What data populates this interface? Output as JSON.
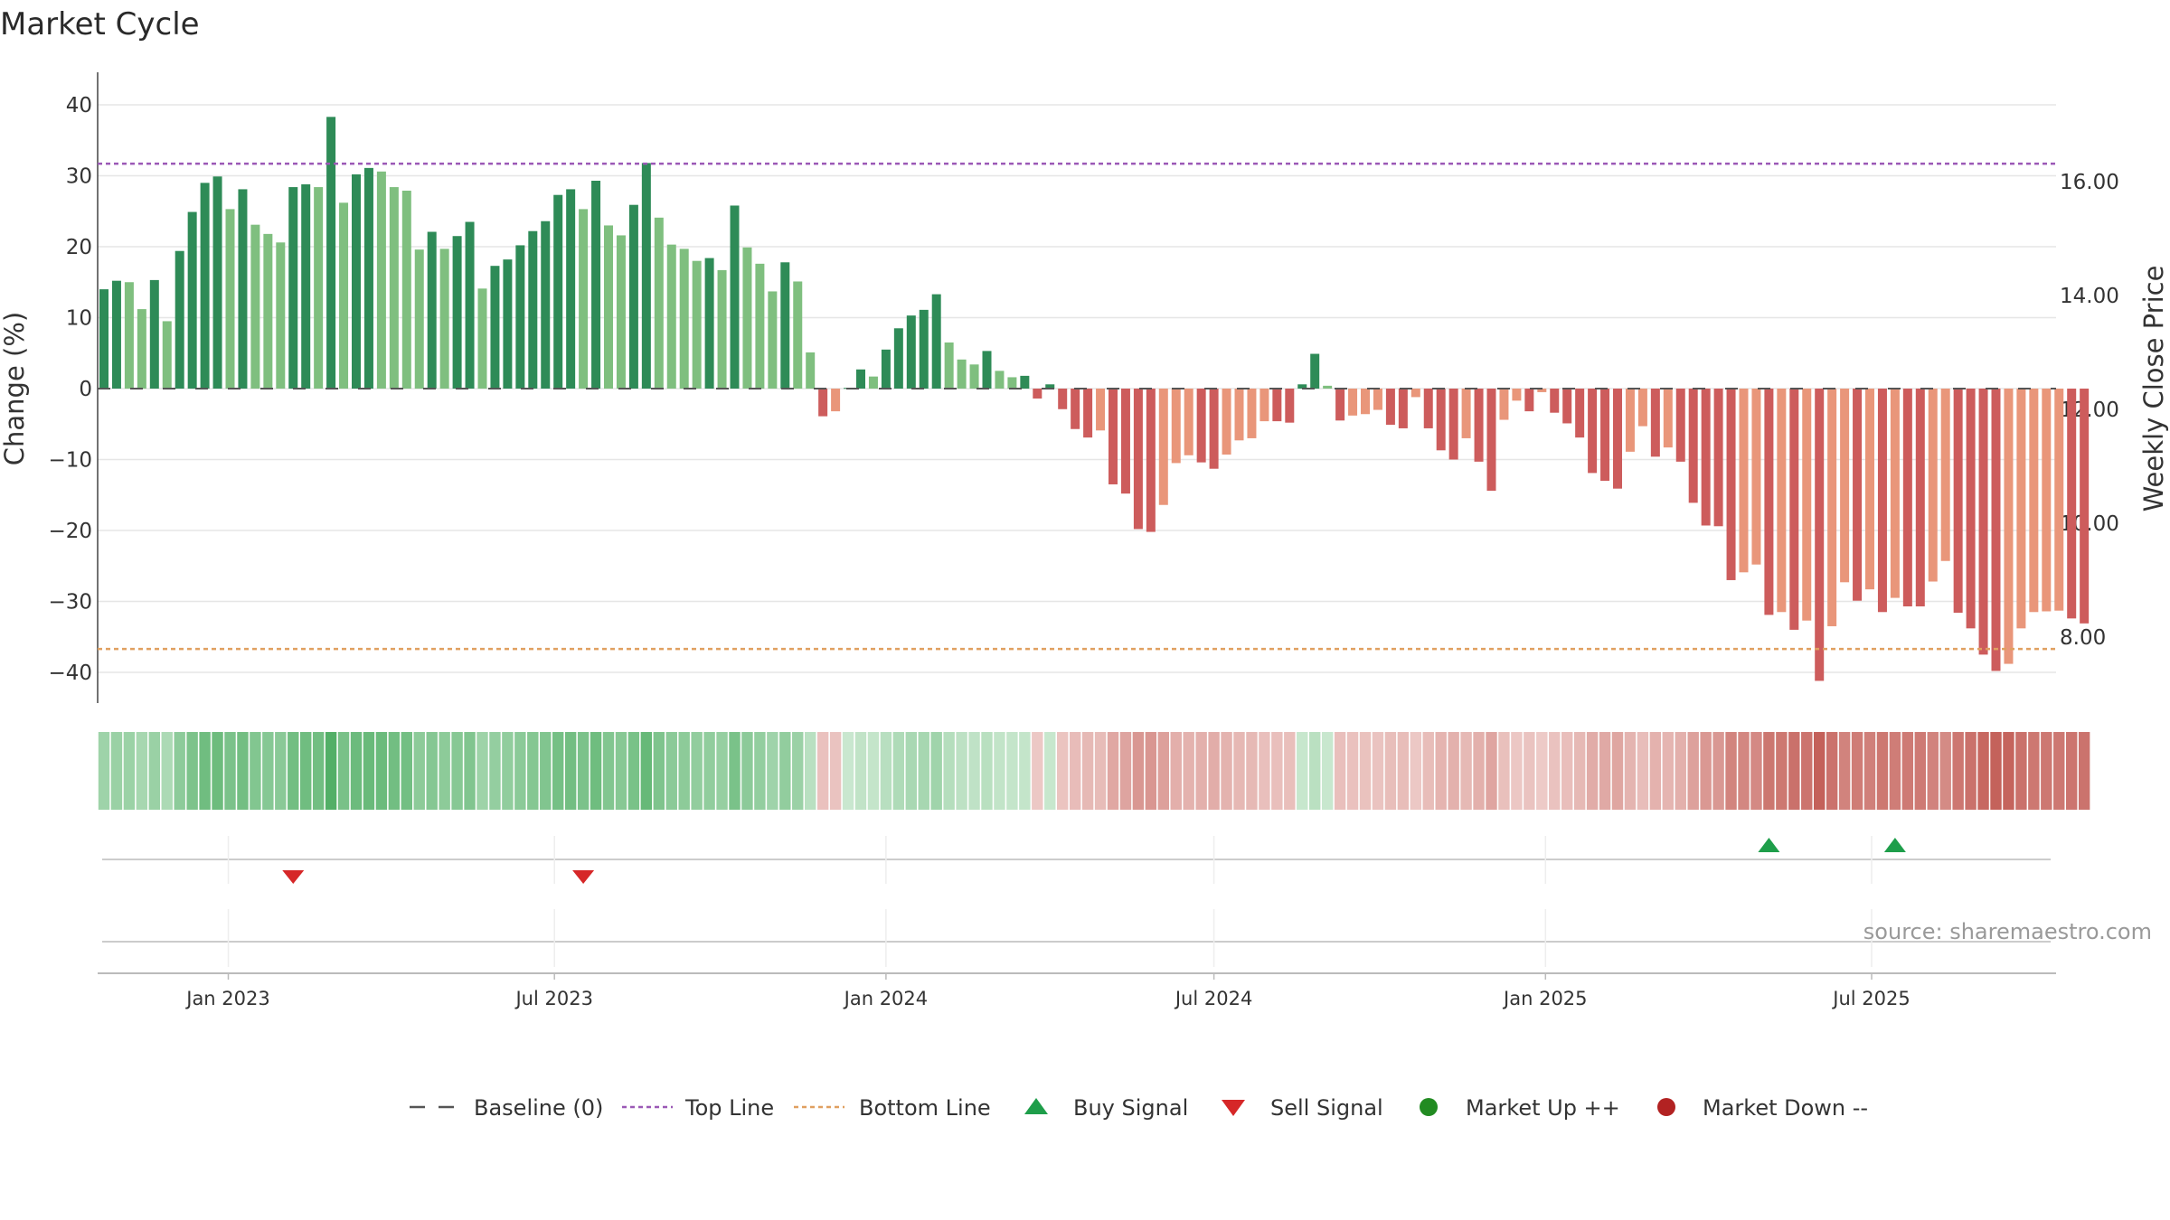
{
  "page": {
    "title": "Market Cycle",
    "source": "source: sharemaestro.com"
  },
  "colors": {
    "bar_up_strong": "#2e8b57",
    "bar_up_light": "#7fbf7f",
    "bar_down_strong": "#cd5c5c",
    "bar_down_light": "#e9967a",
    "top_line": "#9b59b6",
    "bottom_line": "#e0a060",
    "baseline": "#555555",
    "buy_signal": "#1e9e4a",
    "sell_signal": "#d62728",
    "market_up": "#228b22",
    "market_down": "#b22222",
    "grid": "#e6e6e6"
  },
  "legend": [
    {
      "key": "baseline",
      "label": "Baseline (0)",
      "icon": "dash-line-icon"
    },
    {
      "key": "top",
      "label": "Top Line",
      "icon": "dotted-purple-line-icon"
    },
    {
      "key": "bottom",
      "label": "Bottom Line",
      "icon": "dotted-orange-line-icon"
    },
    {
      "key": "buy",
      "label": "Buy Signal",
      "icon": "triangle-up-icon"
    },
    {
      "key": "sell",
      "label": "Sell Signal",
      "icon": "triangle-down-icon"
    },
    {
      "key": "up",
      "label": "Market Up ++",
      "icon": "green-circle-icon"
    },
    {
      "key": "down",
      "label": "Market Down --",
      "icon": "red-circle-icon"
    }
  ],
  "chart_data": {
    "type": "bar",
    "title": "Market Cycle",
    "ylabel_left": "Change (%)",
    "ylabel_right": "Weekly Close Price",
    "ylim_left": [
      -45,
      45
    ],
    "yticks_left": [
      40,
      30,
      20,
      10,
      0,
      -10,
      -20,
      -30,
      -40
    ],
    "ytick_labels_left": [
      "40",
      "30",
      "20",
      "10",
      "0",
      "−10",
      "−20",
      "−30",
      "−40"
    ],
    "yticks_right": [
      16,
      14,
      12,
      10,
      8
    ],
    "ytick_labels_right": [
      "16.00",
      "14.00",
      "12.00",
      "10.00",
      "8.00"
    ],
    "top_line": 31.7,
    "bottom_line": -36.7,
    "baseline": 0,
    "grid": true,
    "legend_position": "bottom",
    "x_start": "2022-10-24",
    "x_step_days": 7,
    "xtick_labels": [
      "Jan 2023",
      "Jul 2023",
      "Jan 2024",
      "Jul 2024",
      "Jan 2025",
      "Jul 2025"
    ],
    "xtick_dates": [
      "2023-01-01",
      "2023-07-01",
      "2024-01-01",
      "2024-07-01",
      "2025-01-01",
      "2025-07-01"
    ],
    "values": [
      14,
      15.2,
      15,
      11.2,
      15.3,
      9.5,
      19.4,
      24.9,
      29,
      29.9,
      25.3,
      28.1,
      23.1,
      21.8,
      20.6,
      28.4,
      28.8,
      28.4,
      38.3,
      26.2,
      30.2,
      31.1,
      30.6,
      28.4,
      27.9,
      19.6,
      22.1,
      19.7,
      21.5,
      23.5,
      14.1,
      17.3,
      18.2,
      20.2,
      22.2,
      23.6,
      27.3,
      28.1,
      25.3,
      29.3,
      23,
      21.6,
      25.9,
      31.8,
      24.1,
      20.3,
      19.7,
      18,
      18.4,
      16.7,
      25.8,
      19.9,
      17.6,
      13.7,
      17.8,
      15.1,
      5.1,
      -3.9,
      -3.2,
      0.1,
      2.7,
      1.7,
      5.5,
      8.5,
      10.3,
      11.1,
      13.3,
      6.5,
      4.1,
      3.4,
      5.3,
      2.5,
      1.6,
      1.8,
      -1.4,
      0.6,
      -2.9,
      -5.7,
      -6.9,
      -5.9,
      -13.5,
      -14.8,
      -19.8,
      -20.2,
      -16.4,
      -10.5,
      -9.4,
      -10.4,
      -11.3,
      -9.3,
      -7.3,
      -7.0,
      -4.6,
      -4.6,
      -4.8,
      0.6,
      4.9,
      0.4,
      -4.5,
      -3.8,
      -3.6,
      -3.0,
      -5.1,
      -5.6,
      -1.2,
      -5.6,
      -8.7,
      -10.0,
      -7.0,
      -10.3,
      -14.4,
      -4.4,
      -1.7,
      -3.2,
      -0.5,
      -3.4,
      -4.9,
      -6.9,
      -11.9,
      -13.0,
      -14.1,
      -8.9,
      -5.3,
      -9.6,
      -8.3,
      -10.3,
      -16.1,
      -19.3,
      -19.4,
      -27.0,
      -25.9,
      -24.8,
      -31.9,
      -31.5,
      -34.0,
      -32.7,
      -41.2,
      -33.5,
      -27.3,
      -29.9,
      -28.3,
      -31.5,
      -29.5,
      -30.7,
      -30.7,
      -27.2,
      -24.3,
      -31.6,
      -33.8,
      -37.5,
      -39.8,
      -38.8,
      -33.8,
      -31.5,
      -31.4,
      -31.3,
      -32.4,
      -33.1
    ],
    "buy_signals": [
      {
        "date": "2025-05-05"
      },
      {
        "date": "2025-07-14"
      }
    ],
    "sell_signals": [
      {
        "date": "2023-02-06"
      },
      {
        "date": "2023-07-17"
      }
    ]
  }
}
